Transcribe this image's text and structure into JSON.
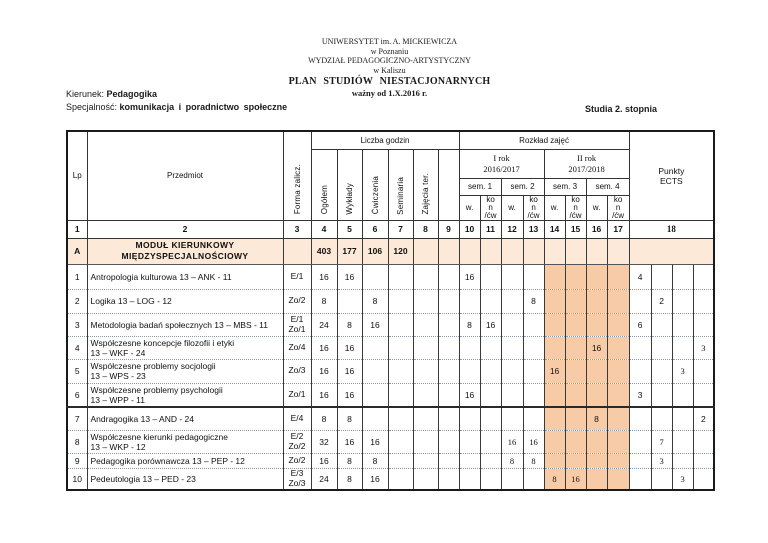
{
  "header": {
    "line1": "UNIWERSYTET im. A. MICKIEWICZA",
    "line2": "w Poznaniu",
    "line3": "WYDZIAŁ PEDAGOGICZNO-ARTYSTYCZNY",
    "line4": "w Kaliszu",
    "line5": "PLAN STUDIÓW NIESTACJONARNYCH",
    "line6": "ważny od 1.X.2016 r."
  },
  "meta": {
    "kierunek_label": "Kierunek:",
    "kierunek_value": "Pedagogika",
    "specjalnosc_label": "Specjalność:",
    "specjalnosc_value": "komunikacja i poradnictwo społeczne",
    "studia": "Studia 2. stopnia"
  },
  "table": {
    "header": {
      "lp": "Lp",
      "przedmiot": "Przedmiot",
      "forma": "Forma zalicz.",
      "liczba_godzin": "Liczba godzin",
      "rozklad": "Rozkład zajęć",
      "hour_cols": [
        "Ogółem",
        "Wykłady",
        "Ćwiczenia",
        "Seminaria",
        "Zajęcia ter.",
        ""
      ],
      "rok1": "I rok\n2016/2017",
      "rok2": "II rok\n2017/2018",
      "sems": [
        "sem. 1",
        "sem. 2",
        "sem. 3",
        "sem. 4"
      ],
      "w_label": "w.",
      "kon_label": "ko\nn\n/ćw",
      "punkty": "Punkty\nECTS",
      "col_numbers": [
        "1",
        "2",
        "3",
        "4",
        "5",
        "6",
        "7",
        "8",
        "9",
        "10",
        "11",
        "12",
        "13",
        "14",
        "15",
        "16",
        "17",
        "18"
      ]
    },
    "module_row": {
      "lp": "A",
      "name": "MODUŁ KIERUNKOWY\nMIĘDZYSPECJALNOŚCIOWY",
      "forma": "",
      "hours": [
        "403",
        "177",
        "106",
        "120",
        "",
        ""
      ]
    },
    "rows": [
      {
        "lp": "1",
        "name": "Antropologia kulturowa 13 – ANK - 11",
        "forma": "E/1",
        "hours": [
          "16",
          "16",
          "",
          "",
          "",
          ""
        ],
        "sched": {
          "c10": "16"
        },
        "ects": {
          "e1": "4"
        }
      },
      {
        "lp": "2",
        "name": "Logika 13 – LOG - 12",
        "forma": "Zo/2",
        "hours": [
          "8",
          "",
          "8",
          "",
          "",
          ""
        ],
        "sched": {
          "c13": "8"
        },
        "ects": {
          "e2": "2"
        }
      },
      {
        "lp": "3",
        "name": "Metodologia badań społecznych 13 – MBS - 11",
        "forma": "E/1\nZo/1",
        "hours": [
          "24",
          "8",
          "16",
          "",
          "",
          ""
        ],
        "sched": {
          "c10": "8",
          "c11": "16"
        },
        "ects": {
          "e1": "6"
        }
      },
      {
        "lp": "4",
        "name": "Współczesne koncepcje filozofii i etyki\n13 – WKF - 24",
        "forma": "Zo/4",
        "hours": [
          "16",
          "16",
          "",
          "",
          "",
          ""
        ],
        "sched": {
          "c16": "16"
        },
        "ects": {
          "e4": "3"
        },
        "ects_serif": true
      },
      {
        "lp": "5",
        "name": "Współczesne problemy socjologii\n13 – WPS - 23",
        "forma": "Zo/3",
        "hours": [
          "16",
          "16",
          "",
          "",
          "",
          ""
        ],
        "sched": {
          "c14": "16"
        },
        "ects": {
          "e3": "3"
        },
        "ects_serif": true
      },
      {
        "lp": "6",
        "name": "Współczesne problemy psychologii\n13 – WPP - 11",
        "forma": "Zo/1",
        "hours": [
          "16",
          "16",
          "",
          "",
          "",
          ""
        ],
        "sched": {
          "c10": "16"
        },
        "ects": {
          "e1": "3"
        }
      },
      {
        "lp": "7",
        "name": "Andragogika 13 – AND - 24",
        "forma": "E/4",
        "hours": [
          "8",
          "8",
          "",
          "",
          "",
          ""
        ],
        "sched": {
          "c16": "8"
        },
        "ects": {
          "e4": "2"
        },
        "thick_top": true
      },
      {
        "lp": "8",
        "name": "Współczesne kierunki pedagogiczne\n13 – WKP - 12",
        "forma": "E/2\nZo/2",
        "hours": [
          "32",
          "16",
          "16",
          "",
          "",
          ""
        ],
        "sched": {
          "c12": "16",
          "c13": "16"
        },
        "sched_serif": true,
        "ects": {
          "e2": "7"
        },
        "ects_serif": true
      },
      {
        "lp": "9",
        "name": "Pedagogika porównawcza 13 – PEP - 12",
        "forma": "Zo/2",
        "hours": [
          "16",
          "8",
          "8",
          "",
          "",
          ""
        ],
        "sched": {
          "c12": "8",
          "c13": "8"
        },
        "sched_serif": true,
        "ects": {
          "e2": "3"
        },
        "ects_serif": true
      },
      {
        "lp": "10",
        "name": "Pedeutologia 13 – PED - 23",
        "forma": "E/3\nZo/3",
        "hours": [
          "24",
          "8",
          "16",
          "",
          "",
          ""
        ],
        "sched": {
          "c14": "8",
          "c15": "16"
        },
        "sched_serif": true,
        "ects": {
          "e3": "3"
        },
        "ects_serif": true
      }
    ]
  }
}
